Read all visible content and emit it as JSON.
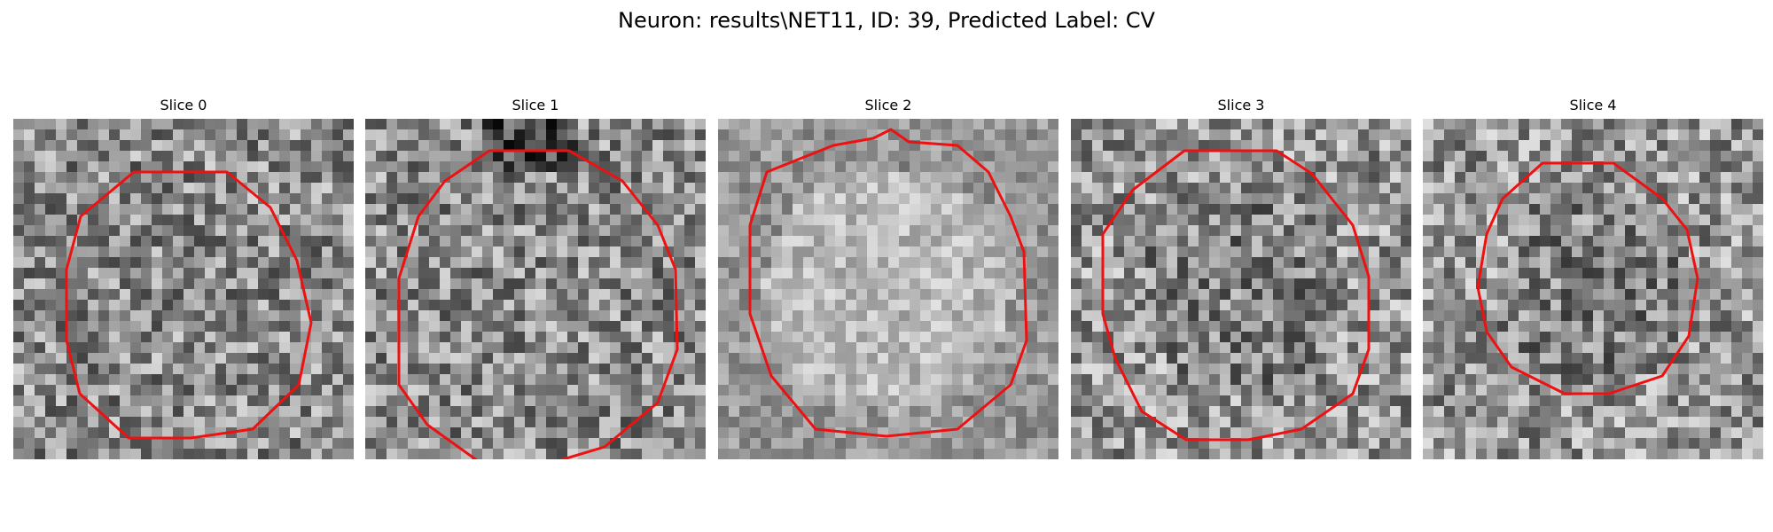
{
  "figure": {
    "title": "Neuron: results\\NET11, ID: 39, Predicted Label: CV"
  },
  "panels": [
    {
      "title": "Slice 0",
      "image_description": "grayscale noisy tile with a red polygon contour outlining a roughly circular neuron"
    },
    {
      "title": "Slice 1",
      "image_description": "grayscale noisy tile with a red polygon contour outlining a roughly circular neuron, dark band along the top"
    },
    {
      "title": "Slice 2",
      "image_description": "grayscale tile, brighter interior, red polygon contour outlining a roughly circular neuron"
    },
    {
      "title": "Slice 3",
      "image_description": "grayscale noisy tile with a red polygon contour outlining a roughly circular neuron"
    },
    {
      "title": "Slice 4",
      "image_description": "grayscale noisy tile with a smaller red polygon contour outlining a neuron"
    }
  ],
  "colors": {
    "contour": "#ee1111",
    "background": "#ffffff"
  }
}
